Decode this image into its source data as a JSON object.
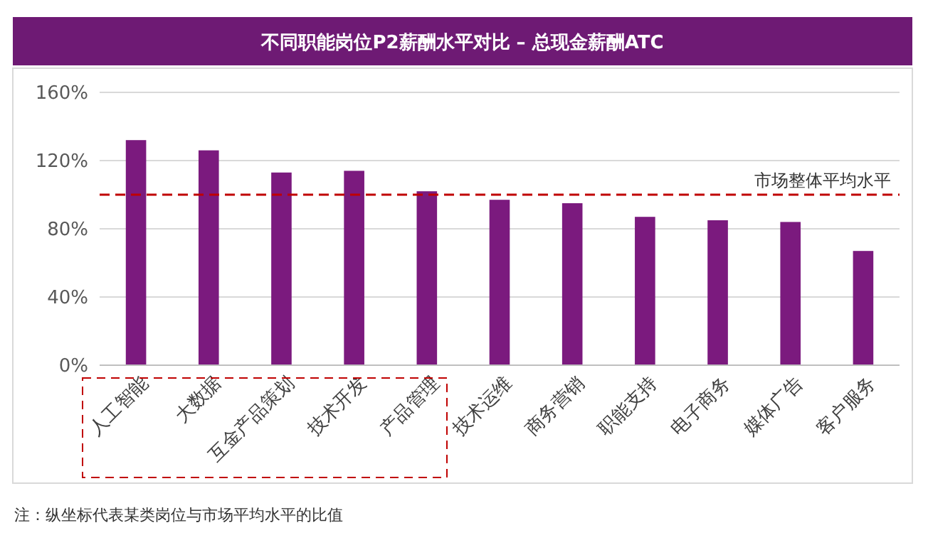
{
  "chart_data": {
    "type": "bar",
    "title": "不同职能岗位P2薪酬水平对比 – 总现金薪酬ATC",
    "categories": [
      "人工智能",
      "大数据",
      "互金产品策划",
      "技术开发",
      "产品管理",
      "技术运维",
      "商务营销",
      "职能支持",
      "电子商务",
      "媒体广告",
      "客户服务"
    ],
    "values": [
      132,
      126,
      113,
      114,
      102,
      97,
      95,
      87,
      85,
      84,
      67
    ],
    "color": "#7b1a7e",
    "ylim": [
      0,
      160
    ],
    "yticks": [
      {
        "value": 0,
        "label": "0%"
      },
      {
        "value": 40,
        "label": "40%"
      },
      {
        "value": 80,
        "label": "80%"
      },
      {
        "value": 120,
        "label": "120%"
      },
      {
        "value": 160,
        "label": "160%"
      }
    ],
    "grid": "y",
    "ref_lines": [
      {
        "axis": "y",
        "value": 100,
        "label": "市场整体平均水平",
        "color": "#c00000",
        "line_style": "dashed"
      }
    ],
    "annotations": [
      "注：纵坐标代表某类岗位与市场平均水平的比值"
    ]
  }
}
